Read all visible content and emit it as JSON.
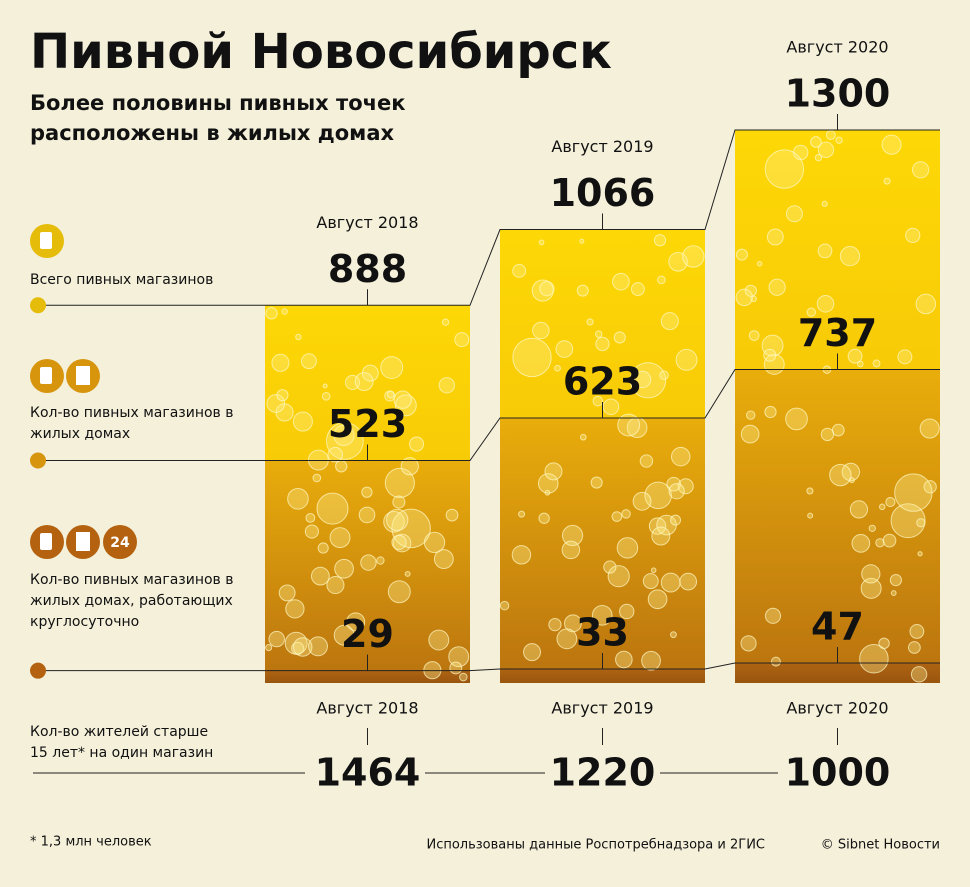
{
  "chart_data": {
    "type": "bar",
    "title": "Пивной Новосибирск",
    "subtitle": "Более половины пивных точек расположены в жилых домах",
    "categories": [
      "Август 2018",
      "Август 2019",
      "Август 2020"
    ],
    "series": [
      {
        "name": "Всего пивных магазинов",
        "color": "#e6bc0a",
        "values": [
          888,
          1066,
          1300
        ]
      },
      {
        "name": "Кол-во пивных магазинов в жилых домах",
        "color": "#d7950e",
        "values": [
          523,
          623,
          737
        ]
      },
      {
        "name": "Кол-во пивных магазинов в жилых домах, работающих круглосуточно",
        "color": "#b4620f",
        "values": [
          29,
          33,
          47
        ]
      }
    ],
    "legend_badge": "24",
    "residents": {
      "name": "Кол-во жителей старше 15 лет* на один магазин",
      "values": [
        1464,
        1220,
        1000
      ]
    },
    "ylim": [
      0,
      1300
    ],
    "footnote": "* 1,3 млн человек",
    "source": "Использованы данные Роспотребнадзора и 2ГИС",
    "copyright": "© Sibnet Новости"
  }
}
